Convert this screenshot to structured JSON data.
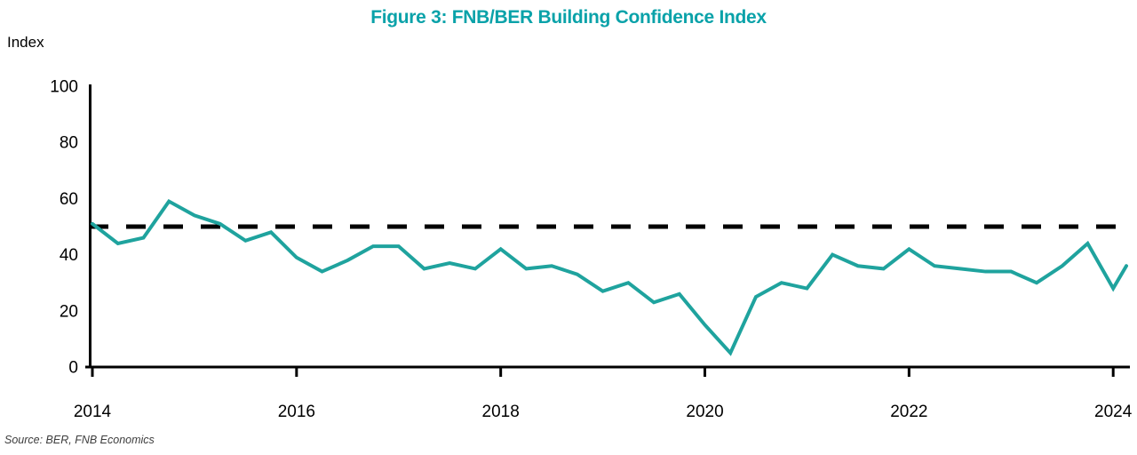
{
  "title": "Figure 3: FNB/BER Building Confidence Index",
  "y_axis_label": "Index",
  "source": "Source: BER, FNB Economics",
  "colors": {
    "title": "#0AA2A9",
    "line": "#1FA39E",
    "axis": "#000000",
    "dashed_line": "#000000",
    "tick_text": "#000000",
    "source_text": "#3d3d3d"
  },
  "chart_data": {
    "type": "line",
    "title": "Figure 3: FNB/BER Building Confidence Index",
    "xlabel": "",
    "ylabel": "Index",
    "ylim": [
      0,
      100
    ],
    "y_ticks": [
      0,
      20,
      40,
      60,
      80,
      100
    ],
    "x_ticks": [
      2014,
      2016,
      2018,
      2020,
      2022,
      2024
    ],
    "grid": false,
    "legend": "none",
    "reference_line": {
      "value": 50,
      "style": "dashed",
      "meaning": "neutral level"
    },
    "series": [
      {
        "name": "FNB/BER Building Confidence Index",
        "frequency": "quarterly",
        "start": "2014Q1",
        "end": "2024Q2",
        "values": [
          51,
          44,
          46,
          59,
          54,
          51,
          45,
          48,
          39,
          34,
          38,
          43,
          43,
          35,
          37,
          35,
          42,
          35,
          36,
          33,
          27,
          30,
          23,
          26,
          15,
          5,
          25,
          30,
          28,
          40,
          36,
          35,
          42,
          36,
          35,
          34,
          34,
          30,
          36,
          44,
          28,
          36
        ]
      }
    ]
  }
}
